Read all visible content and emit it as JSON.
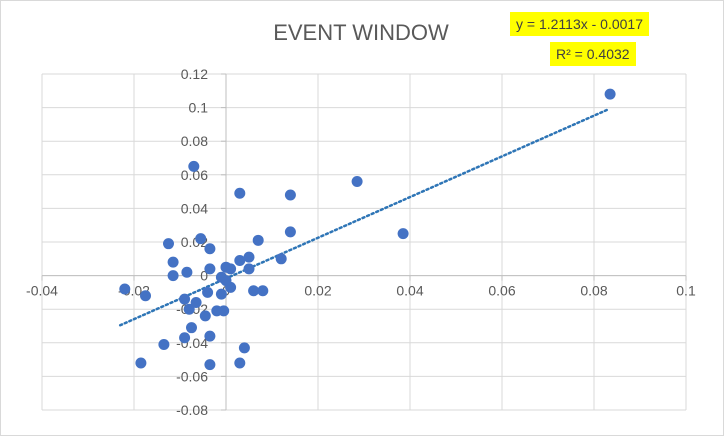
{
  "chart_data": {
    "type": "scatter",
    "title": "EVENT WINDOW",
    "xlabel": "",
    "ylabel": "",
    "xlim": [
      -0.04,
      0.1
    ],
    "ylim": [
      -0.08,
      0.12
    ],
    "x_ticks": [
      "-0.04",
      "-0.02",
      "0",
      "0.02",
      "0.04",
      "0.06",
      "0.08",
      "0.1"
    ],
    "y_ticks": [
      "0.12",
      "0.1",
      "0.08",
      "0.06",
      "0.04",
      "0.02",
      "0",
      "-0.02",
      "-0.04",
      "-0.06",
      "-0.08"
    ],
    "grid": true,
    "marker_color": "#4472c4",
    "trendline": {
      "type": "linear",
      "slope": 1.2113,
      "intercept": -0.0017,
      "x_range": [
        -0.023,
        0.083
      ],
      "color": "#2e75b6",
      "style": "dotted",
      "equation_label": "y = 1.2113x - 0.0017",
      "r2_label": "R² = 0.4032"
    },
    "points": [
      {
        "x": 0.0835,
        "y": 0.108
      },
      {
        "x": 0.0285,
        "y": 0.056
      },
      {
        "x": 0.0385,
        "y": 0.025
      },
      {
        "x": 0.014,
        "y": 0.048
      },
      {
        "x": 0.014,
        "y": 0.026
      },
      {
        "x": 0.003,
        "y": 0.049
      },
      {
        "x": -0.007,
        "y": 0.065
      },
      {
        "x": 0.007,
        "y": 0.021
      },
      {
        "x": 0.012,
        "y": 0.01
      },
      {
        "x": 0.003,
        "y": 0.009
      },
      {
        "x": 0.005,
        "y": 0.011
      },
      {
        "x": 0.005,
        "y": 0.004
      },
      {
        "x": 0.001,
        "y": 0.004
      },
      {
        "x": 0.0,
        "y": 0.005
      },
      {
        "x": 0.0,
        "y": -0.003
      },
      {
        "x": -0.001,
        "y": -0.001
      },
      {
        "x": 0.001,
        "y": -0.007
      },
      {
        "x": 0.006,
        "y": -0.009
      },
      {
        "x": 0.008,
        "y": -0.009
      },
      {
        "x": -0.0125,
        "y": 0.019
      },
      {
        "x": -0.0055,
        "y": 0.022
      },
      {
        "x": -0.0035,
        "y": 0.016
      },
      {
        "x": -0.0115,
        "y": 0.008
      },
      {
        "x": -0.0035,
        "y": 0.004
      },
      {
        "x": -0.0085,
        "y": 0.002
      },
      {
        "x": -0.0115,
        "y": 0.0
      },
      {
        "x": -0.022,
        "y": -0.008
      },
      {
        "x": -0.0175,
        "y": -0.012
      },
      {
        "x": -0.009,
        "y": -0.014
      },
      {
        "x": -0.0065,
        "y": -0.016
      },
      {
        "x": -0.004,
        "y": -0.01
      },
      {
        "x": -0.001,
        "y": -0.011
      },
      {
        "x": -0.008,
        "y": -0.02
      },
      {
        "x": -0.002,
        "y": -0.021
      },
      {
        "x": -0.0005,
        "y": -0.021
      },
      {
        "x": -0.0045,
        "y": -0.024
      },
      {
        "x": -0.0075,
        "y": -0.031
      },
      {
        "x": -0.009,
        "y": -0.037
      },
      {
        "x": -0.0035,
        "y": -0.036
      },
      {
        "x": -0.0135,
        "y": -0.041
      },
      {
        "x": 0.004,
        "y": -0.043
      },
      {
        "x": -0.0185,
        "y": -0.052
      },
      {
        "x": -0.0035,
        "y": -0.053
      },
      {
        "x": 0.003,
        "y": -0.052
      }
    ]
  }
}
